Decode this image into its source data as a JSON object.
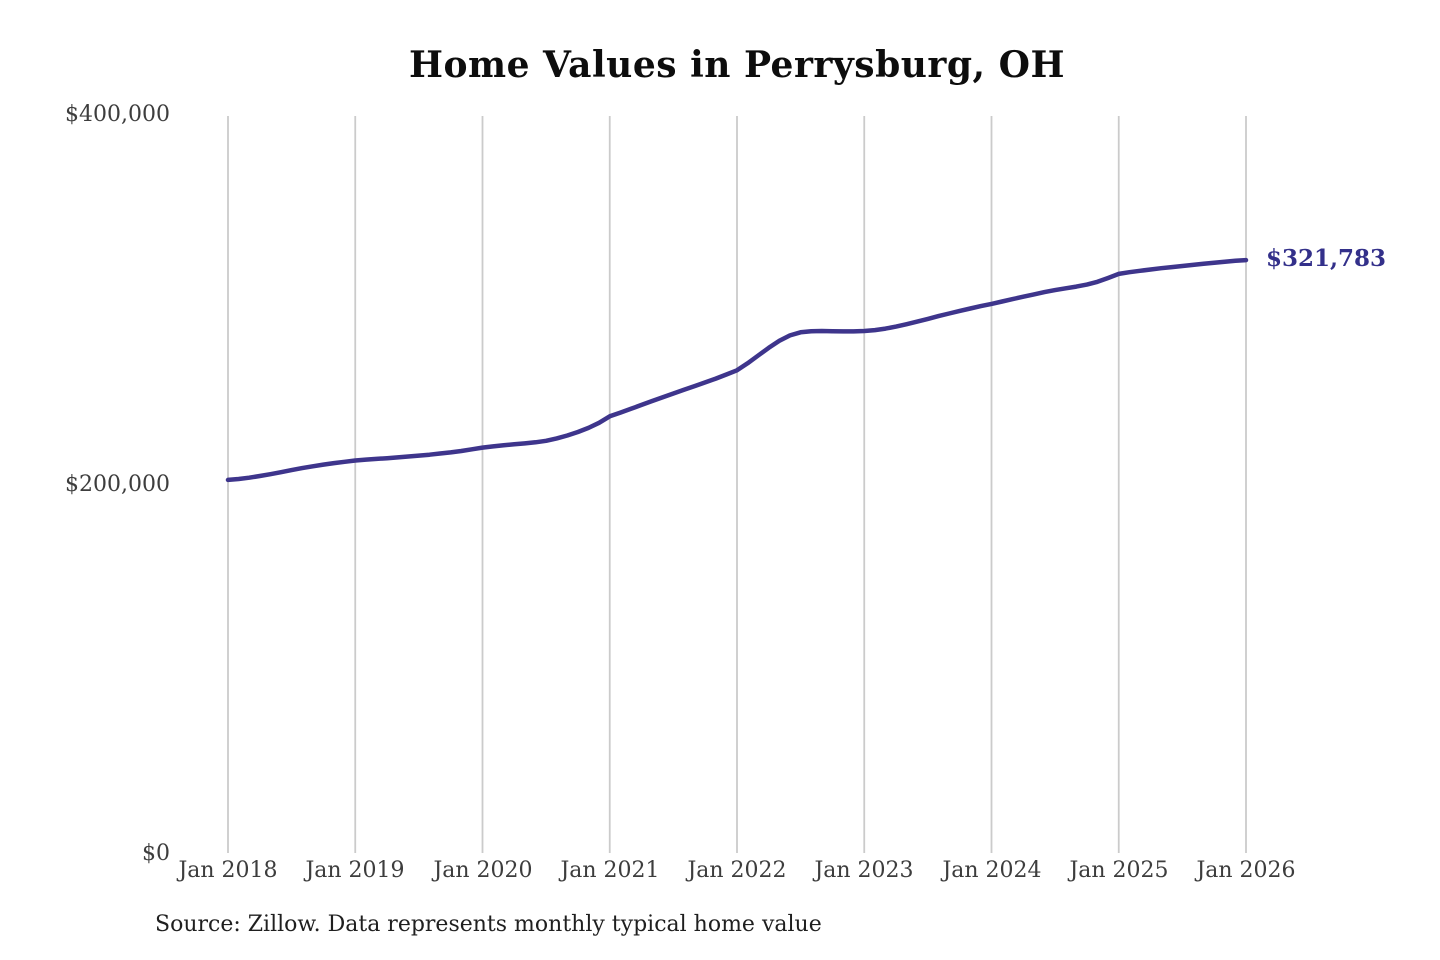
{
  "title": "Home Values in Perrysburg, OH",
  "source_note": "Source: Zillow. Data represents monthly typical home value",
  "colors": {
    "line": "#3e358c",
    "end_label": "#33308a",
    "grid": "#cbcbcb",
    "axis_text": "#3d3d3d",
    "title_text": "#0d0d0d",
    "background": "#ffffff"
  },
  "chart_data": {
    "type": "line",
    "title": "Home Values in Perrysburg, OH",
    "xlabel": "",
    "ylabel": "",
    "ylim": [
      0,
      400000
    ],
    "grid": "vertical-only",
    "legend": "none",
    "x_tick_labels": [
      "Jan 2018",
      "Jan 2019",
      "Jan 2020",
      "Jan 2021",
      "Jan 2022",
      "Jan 2023",
      "Jan 2024",
      "Jan 2025",
      "Jan 2026"
    ],
    "y_tick_labels": [
      "$0",
      "$200,000",
      "$400,000"
    ],
    "annotation": {
      "text": "$321,783",
      "position": "line-end"
    },
    "series": [
      {
        "name": "Monthly typical home value",
        "x_start": "Jan 2018",
        "x_end": "Jan 2026",
        "frequency": "monthly",
        "final_value": 321783,
        "values": [
          202500,
          203000,
          203700,
          204600,
          205600,
          206700,
          207800,
          208900,
          209900,
          210800,
          211600,
          212300,
          213000,
          213500,
          213900,
          214300,
          214700,
          215200,
          215700,
          216200,
          216800,
          217400,
          218200,
          219100,
          220000,
          220700,
          221300,
          221800,
          222300,
          222900,
          223700,
          225000,
          226600,
          228500,
          230700,
          233500,
          237000,
          239000,
          241100,
          243200,
          245300,
          247400,
          249400,
          251400,
          253400,
          255400,
          257500,
          259700,
          262000,
          265800,
          270000,
          274200,
          278000,
          280900,
          282600,
          283200,
          283300,
          283200,
          283100,
          283100,
          283300,
          283800,
          284600,
          285700,
          287000,
          288400,
          289900,
          291400,
          292800,
          294200,
          295500,
          296800,
          298000,
          299300,
          300600,
          301900,
          303200,
          304400,
          305500,
          306500,
          307400,
          308500,
          310000,
          312100,
          314300,
          315200,
          316000,
          316700,
          317400,
          318000,
          318600,
          319200,
          319800,
          320400,
          320900,
          321400,
          321783
        ]
      }
    ]
  }
}
